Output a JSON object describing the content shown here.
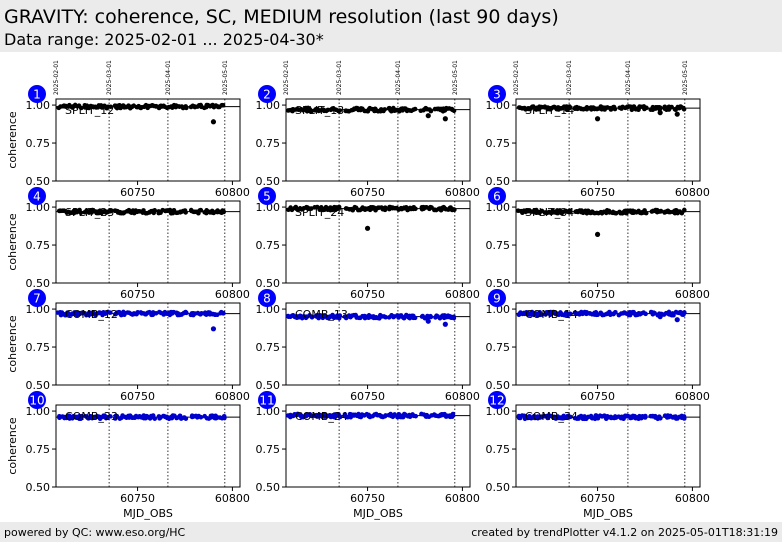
{
  "header": {
    "title": "GRAVITY: coherence, SC, MEDIUM resolution (last 90 days)",
    "subtitle": "Data range: 2025-02-01 ... 2025-04-30*"
  },
  "footer": {
    "left": "powered by QC: www.eso.org/HC",
    "right": "created by trendPlotter v4.1.2 on 2025-05-01T18:31:19"
  },
  "colors": {
    "split": "#000000",
    "comb": "#0000cc",
    "badge": "#0000ff",
    "header_bg": "#ebebeb"
  },
  "chart_data": {
    "type": "scatter",
    "xlabel": "MJD_OBS",
    "ylabel": "coherence",
    "xlim": [
      60707,
      60804
    ],
    "ylim": [
      0.5,
      1.04
    ],
    "xticks": [
      60750,
      60800
    ],
    "yticks": [
      "0.50",
      "0.75",
      "1.00"
    ],
    "date_lines": [
      {
        "label": "2025-02-01",
        "mjd": 60707
      },
      {
        "label": "2025-03-01",
        "mjd": 60735
      },
      {
        "label": "2025-04-01",
        "mjd": 60766
      },
      {
        "label": "2025-05-01",
        "mjd": 60796
      }
    ],
    "panels": [
      {
        "id": "1",
        "label": "SPLIT_12",
        "group": "split",
        "ref": 0.99,
        "level": 0.99,
        "outliers": [
          {
            "x": 60790,
            "y": 0.89
          }
        ]
      },
      {
        "id": "2",
        "label": "SPLIT_13",
        "group": "split",
        "ref": 0.97,
        "level": 0.97,
        "outliers": [
          {
            "x": 60782,
            "y": 0.93
          },
          {
            "x": 60791,
            "y": 0.91
          }
        ]
      },
      {
        "id": "3",
        "label": "SPLIT_14",
        "group": "split",
        "ref": 0.98,
        "level": 0.98,
        "outliers": [
          {
            "x": 60750,
            "y": 0.91
          },
          {
            "x": 60783,
            "y": 0.95
          },
          {
            "x": 60792,
            "y": 0.94
          }
        ]
      },
      {
        "id": "4",
        "label": "SPLIT_23",
        "group": "split",
        "ref": 0.97,
        "level": 0.97,
        "outliers": []
      },
      {
        "id": "5",
        "label": "SPLIT_24",
        "group": "split",
        "ref": 0.99,
        "level": 0.99,
        "outliers": [
          {
            "x": 60750,
            "y": 0.86
          }
        ]
      },
      {
        "id": "6",
        "label": "SPLIT_34",
        "group": "split",
        "ref": 0.97,
        "level": 0.97,
        "outliers": [
          {
            "x": 60750,
            "y": 0.82
          }
        ]
      },
      {
        "id": "7",
        "label": "COMB_12",
        "group": "comb",
        "ref": 0.97,
        "level": 0.97,
        "outliers": [
          {
            "x": 60790,
            "y": 0.87
          }
        ]
      },
      {
        "id": "8",
        "label": "COMB_13",
        "group": "comb",
        "ref": 0.95,
        "level": 0.95,
        "outliers": [
          {
            "x": 60782,
            "y": 0.92
          },
          {
            "x": 60791,
            "y": 0.9
          }
        ]
      },
      {
        "id": "9",
        "label": "COMB_14",
        "group": "comb",
        "ref": 0.97,
        "level": 0.97,
        "outliers": [
          {
            "x": 60783,
            "y": 0.95
          },
          {
            "x": 60792,
            "y": 0.93
          }
        ]
      },
      {
        "id": "10",
        "label": "COMB_23",
        "group": "comb",
        "ref": 0.96,
        "level": 0.96,
        "outliers": []
      },
      {
        "id": "11",
        "label": "COMB_24",
        "group": "comb",
        "ref": 0.97,
        "level": 0.97,
        "outliers": []
      },
      {
        "id": "12",
        "label": "COMB_34",
        "group": "comb",
        "ref": 0.96,
        "level": 0.96,
        "outliers": []
      }
    ]
  }
}
